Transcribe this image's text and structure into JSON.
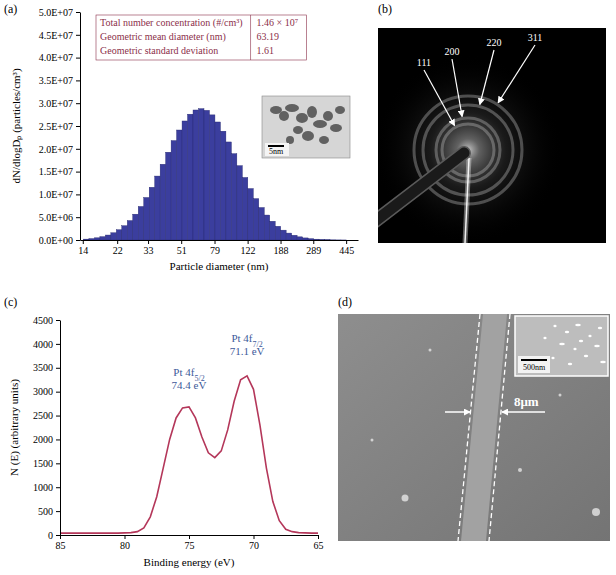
{
  "chart_data": [
    {
      "panel": "(a)",
      "type": "histogram",
      "xlabel": "Particle diameter (nm)",
      "ylabel": "dN/dlogDₚ (particles/cm³)",
      "log": "x",
      "color": "#3b3e9e",
      "bins": [
        14.13,
        15.18,
        16.31,
        17.53,
        18.84,
        20.24,
        21.75,
        23.37,
        25.12,
        26.99,
        29.01,
        31.17,
        33.5,
        36.0,
        38.68,
        41.57,
        44.67,
        48.0,
        51.58,
        55.43,
        59.57,
        64.01,
        68.79,
        73.92,
        79.43,
        85.36,
        91.73,
        98.57,
        105.93,
        113.83,
        122.32,
        131.45,
        141.25,
        151.79,
        163.11,
        175.28,
        188.36,
        202.41,
        217.51,
        233.74,
        251.19,
        269.93,
        290.07,
        311.71,
        334.97,
        359.96,
        386.81,
        415.67,
        446.68
      ],
      "values": [
        193000,
        308000,
        480000,
        730000,
        1087000,
        1583000,
        2251000,
        3130000,
        4260000,
        5660000,
        7350000,
        9320000,
        11560000,
        14020000,
        16610000,
        19250000,
        21800000,
        24120000,
        26100000,
        27590000,
        28510000,
        28800000,
        28430000,
        27440000,
        25880000,
        23860000,
        21500000,
        18930000,
        16300000,
        13710000,
        11280000,
        9070000,
        7120000,
        5470000,
        4110000,
        3010000,
        2160000,
        1514000,
        1037000,
        694000,
        455000,
        291000,
        182000,
        111000,
        66000,
        39000,
        22000,
        12000
      ],
      "xlim": [
        13.5,
        520
      ],
      "xticks": [
        14,
        22,
        33,
        51,
        79,
        122,
        188,
        289,
        445
      ],
      "ylim": [
        0,
        50000000
      ],
      "yticks": [
        {
          "value": 0,
          "label": "0.0E+00"
        },
        {
          "value": 5000000,
          "label": "5.0E+06"
        },
        {
          "value": 10000000,
          "label": "1.0E+07"
        },
        {
          "value": 15000000,
          "label": "1.5E+07"
        },
        {
          "value": 20000000,
          "label": "2.0E+07"
        },
        {
          "value": 25000000,
          "label": "2.5E+07"
        },
        {
          "value": 30000000,
          "label": "3.0E+07"
        },
        {
          "value": 35000000,
          "label": "3.5E+07"
        },
        {
          "value": 40000000,
          "label": "4.0E+07"
        },
        {
          "value": 45000000,
          "label": "4.5E+07"
        },
        {
          "value": 50000000,
          "label": "5.0E+07"
        }
      ],
      "stats": [
        [
          "Total number concentration (#/cm³)",
          "1.46 × 10⁷"
        ],
        [
          "Geometric mean diameter (nm)",
          "63.19"
        ],
        [
          "Geometric standard deviation",
          "1.61"
        ]
      ],
      "inset": {
        "scale_bar": "5nm"
      }
    },
    {
      "panel": "(b)",
      "type": "diffraction",
      "annotations": [
        "111",
        "200",
        "220",
        "311"
      ]
    },
    {
      "panel": "(c)",
      "type": "line",
      "xlabel": "Binding energy (eV)",
      "ylabel": "N (E) (arbitrary units)",
      "color": "#b4375a",
      "x": [
        85,
        84.5,
        84,
        83.5,
        83,
        82.5,
        82,
        81.5,
        81,
        80.5,
        80,
        79.5,
        79,
        78.5,
        78,
        77.5,
        77,
        76.5,
        76,
        75.5,
        75,
        74.5,
        74,
        73.5,
        73,
        72.5,
        72,
        71.5,
        71,
        70.5,
        70,
        69.5,
        69,
        68.5,
        68,
        67.5,
        67,
        66.5,
        66,
        65.5,
        65
      ],
      "values": [
        40,
        40,
        40,
        40,
        40,
        40,
        40,
        40,
        40,
        40,
        45,
        50,
        70,
        150,
        380,
        800,
        1400,
        2000,
        2450,
        2660,
        2680,
        2450,
        2050,
        1720,
        1620,
        1760,
        2200,
        2800,
        3250,
        3330,
        3050,
        2300,
        1400,
        700,
        300,
        120,
        70,
        50,
        45,
        40,
        40
      ],
      "xlim": [
        85,
        65
      ],
      "xticks": [
        85,
        80,
        75,
        70,
        65
      ],
      "ylim": [
        0,
        4500
      ],
      "yticks": [
        0,
        500,
        1000,
        1500,
        2000,
        2500,
        3000,
        3500,
        4000,
        4500
      ],
      "annotations": [
        {
          "label": "Pt 4f",
          "sub": "5/2",
          "energy": "74.4 eV"
        },
        {
          "label": "Pt 4f",
          "sub": "7/2",
          "energy": "71.1 eV"
        }
      ]
    },
    {
      "panel": "(d)",
      "type": "micrograph",
      "annotations": [
        "8μm"
      ],
      "inset": {
        "scale_bar": "500nm"
      }
    }
  ]
}
